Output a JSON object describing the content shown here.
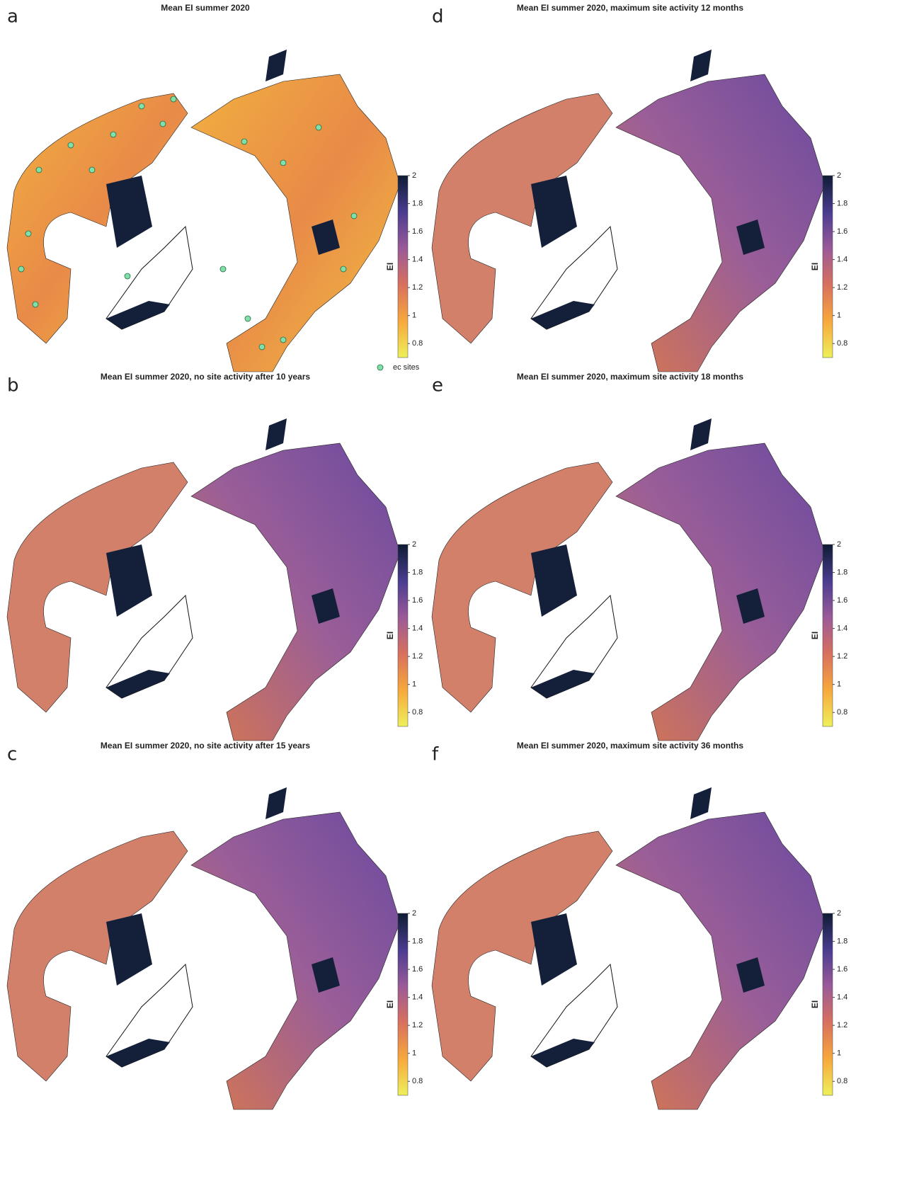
{
  "panels": [
    {
      "letter": "a",
      "title": "Mean EI summer 2020",
      "legend": "ec sites",
      "colorbar": {
        "label": "EI",
        "lim": [
          0.7,
          2
        ],
        "ticks": [
          0.8,
          1,
          1.2,
          1.4,
          1.6,
          1.8,
          2
        ]
      }
    },
    {
      "letter": "b",
      "title": "Mean EI summer 2020, no site activity after 10 years",
      "colorbar": {
        "label": "EI",
        "lim": [
          0.7,
          2
        ],
        "ticks": [
          0.8,
          1,
          1.2,
          1.4,
          1.6,
          1.8,
          2
        ]
      }
    },
    {
      "letter": "c",
      "title": "Mean EI summer 2020, no site activity after 15 years",
      "colorbar": {
        "label": "EI",
        "lim": [
          0.7,
          2
        ],
        "ticks": [
          0.8,
          1,
          1.2,
          1.4,
          1.6,
          1.8,
          2
        ]
      }
    },
    {
      "letter": "d",
      "title": "Mean EI summer 2020, maximum site activity 12 months",
      "colorbar": {
        "label": "EI",
        "lim": [
          0.7,
          2
        ],
        "ticks": [
          0.8,
          1,
          1.2,
          1.4,
          1.6,
          1.8,
          2
        ]
      }
    },
    {
      "letter": "e",
      "title": "Mean EI summer 2020, maximum site activity 18 months",
      "colorbar": {
        "label": "EI",
        "lim": [
          0.7,
          2
        ],
        "ticks": [
          0.8,
          1,
          1.2,
          1.4,
          1.6,
          1.8,
          2
        ]
      }
    },
    {
      "letter": "f",
      "title": "Mean EI summer 2020, maximum site activity 36 months",
      "colorbar": {
        "label": "EI",
        "lim": [
          0.7,
          2
        ],
        "ticks": [
          0.8,
          1,
          1.2,
          1.4,
          1.6,
          1.8,
          2
        ]
      }
    }
  ]
}
